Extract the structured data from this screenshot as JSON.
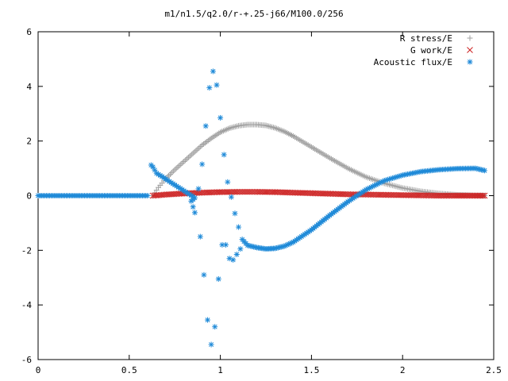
{
  "chart_data": {
    "type": "scatter",
    "title": "m1/n1.5/q2.0/r-+.25-j66/M100.0/256",
    "xlabel": "",
    "ylabel": "",
    "xlim": [
      0,
      2.5
    ],
    "ylim": [
      -6,
      6
    ],
    "x_ticks": [
      "0",
      "0.5",
      "1",
      "1.5",
      "2",
      "2.5"
    ],
    "y_ticks": [
      "6",
      "4",
      "2",
      "0",
      "-2",
      "-4",
      "-6"
    ],
    "grid": false,
    "legend_position": "top-right",
    "series": [
      {
        "name": "R stress/E",
        "marker": "plus",
        "color": "#a0a0a0",
        "points": [
          [
            0.63,
            0.0
          ],
          [
            0.66,
            0.3
          ],
          [
            0.7,
            0.62
          ],
          [
            0.75,
            0.95
          ],
          [
            0.8,
            1.25
          ],
          [
            0.85,
            1.55
          ],
          [
            0.9,
            1.85
          ],
          [
            0.95,
            2.1
          ],
          [
            1.0,
            2.32
          ],
          [
            1.05,
            2.47
          ],
          [
            1.1,
            2.56
          ],
          [
            1.15,
            2.6
          ],
          [
            1.2,
            2.6
          ],
          [
            1.25,
            2.57
          ],
          [
            1.3,
            2.48
          ],
          [
            1.35,
            2.35
          ],
          [
            1.4,
            2.18
          ],
          [
            1.5,
            1.78
          ],
          [
            1.6,
            1.38
          ],
          [
            1.7,
            1.0
          ],
          [
            1.8,
            0.68
          ],
          [
            1.9,
            0.45
          ],
          [
            2.0,
            0.28
          ],
          [
            2.1,
            0.16
          ],
          [
            2.2,
            0.08
          ],
          [
            2.3,
            0.03
          ],
          [
            2.4,
            0.01
          ],
          [
            2.45,
            0.0
          ]
        ]
      },
      {
        "name": "G work/E",
        "marker": "cross",
        "color": "#cc2020",
        "points": [
          [
            0.63,
            0.0
          ],
          [
            0.7,
            0.04
          ],
          [
            0.8,
            0.08
          ],
          [
            0.9,
            0.11
          ],
          [
            1.0,
            0.13
          ],
          [
            1.1,
            0.14
          ],
          [
            1.2,
            0.14
          ],
          [
            1.3,
            0.13
          ],
          [
            1.4,
            0.11
          ],
          [
            1.5,
            0.09
          ],
          [
            1.6,
            0.07
          ],
          [
            1.7,
            0.05
          ],
          [
            1.8,
            0.04
          ],
          [
            1.9,
            0.03
          ],
          [
            2.0,
            0.02
          ],
          [
            2.1,
            0.01
          ],
          [
            2.2,
            0.0
          ],
          [
            2.3,
            0.0
          ],
          [
            2.45,
            0.0
          ]
        ]
      },
      {
        "name": "Acoustic flux/E",
        "marker": "star",
        "color": "#1f8ad8",
        "points": [
          [
            0.0,
            0.0
          ],
          [
            0.1,
            0.0
          ],
          [
            0.2,
            0.0
          ],
          [
            0.3,
            0.0
          ],
          [
            0.4,
            0.0
          ],
          [
            0.5,
            0.0
          ],
          [
            0.6,
            0.0
          ],
          [
            0.62,
            1.12
          ],
          [
            0.63,
            1.05
          ],
          [
            0.65,
            0.82
          ],
          [
            0.68,
            0.7
          ],
          [
            0.72,
            0.52
          ],
          [
            0.76,
            0.35
          ],
          [
            0.8,
            0.18
          ],
          [
            0.83,
            0.05
          ],
          [
            0.86,
            -0.08
          ],
          [
            0.84,
            -0.2
          ],
          [
            0.86,
            -0.62
          ],
          [
            0.88,
            0.25
          ],
          [
            0.89,
            -1.5
          ],
          [
            0.9,
            1.15
          ],
          [
            0.91,
            -2.9
          ],
          [
            0.92,
            2.55
          ],
          [
            0.93,
            -4.55
          ],
          [
            0.94,
            3.95
          ],
          [
            0.95,
            -5.45
          ],
          [
            0.96,
            4.55
          ],
          [
            0.97,
            -4.8
          ],
          [
            0.98,
            4.05
          ],
          [
            0.99,
            -3.05
          ],
          [
            1.0,
            2.85
          ],
          [
            1.01,
            -1.8
          ],
          [
            1.02,
            1.5
          ],
          [
            1.03,
            -1.8
          ],
          [
            1.04,
            0.5
          ],
          [
            1.05,
            -2.3
          ],
          [
            1.06,
            -0.05
          ],
          [
            1.07,
            -2.35
          ],
          [
            1.08,
            -0.65
          ],
          [
            1.09,
            -2.15
          ],
          [
            1.1,
            -1.15
          ],
          [
            1.11,
            -1.95
          ],
          [
            1.12,
            -1.6
          ],
          [
            1.15,
            -1.82
          ],
          [
            1.2,
            -1.9
          ],
          [
            1.25,
            -1.95
          ],
          [
            1.3,
            -1.93
          ],
          [
            1.35,
            -1.85
          ],
          [
            1.4,
            -1.7
          ],
          [
            1.5,
            -1.25
          ],
          [
            1.6,
            -0.72
          ],
          [
            1.7,
            -0.22
          ],
          [
            1.8,
            0.22
          ],
          [
            1.9,
            0.55
          ],
          [
            2.0,
            0.75
          ],
          [
            2.1,
            0.88
          ],
          [
            2.2,
            0.95
          ],
          [
            2.3,
            0.99
          ],
          [
            2.4,
            1.0
          ],
          [
            2.45,
            0.92
          ]
        ]
      }
    ]
  }
}
